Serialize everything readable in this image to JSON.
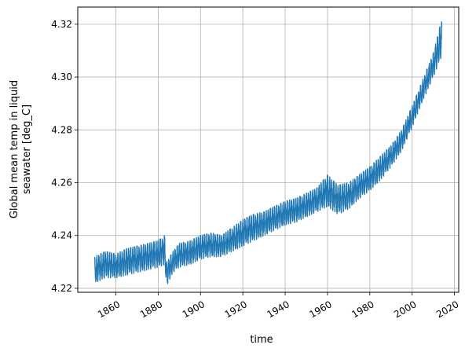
{
  "chart_data": {
    "type": "line",
    "title": "",
    "xlabel": "time",
    "ylabel_lines": [
      "Global mean temp in liquid",
      "seawater [deg_C]"
    ],
    "xlim": [
      1842,
      2022
    ],
    "ylim": [
      4.2185,
      4.3265
    ],
    "grid": true,
    "series_color": "#1f77b4",
    "x_ticks": [
      1860,
      1880,
      1900,
      1920,
      1940,
      1960,
      1980,
      2000,
      2020
    ],
    "x_tick_labels": [
      "1860",
      "1880",
      "1900",
      "1920",
      "1940",
      "1960",
      "1980",
      "2000",
      "2020"
    ],
    "y_ticks": [
      4.22,
      4.24,
      4.26,
      4.28,
      4.3,
      4.32
    ],
    "y_tick_labels": [
      "4.22",
      "4.24",
      "4.26",
      "4.28",
      "4.30",
      "4.32"
    ],
    "series": [
      {
        "x": [
          1850,
          1855,
          1860,
          1865,
          1870,
          1875,
          1880,
          1883,
          1884,
          1887,
          1890,
          1895,
          1900,
          1905,
          1910,
          1915,
          1920,
          1925,
          1930,
          1935,
          1940,
          1945,
          1950,
          1955,
          1960,
          1965,
          1970,
          1975,
          1980,
          1985,
          1990,
          1995,
          2000,
          2005,
          2010,
          2014
        ],
        "low": [
          4.222,
          4.224,
          4.224,
          4.225,
          4.226,
          4.227,
          4.228,
          4.229,
          4.221,
          4.226,
          4.228,
          4.229,
          4.231,
          4.232,
          4.232,
          4.234,
          4.236,
          4.238,
          4.24,
          4.242,
          4.244,
          4.245,
          4.247,
          4.249,
          4.251,
          4.248,
          4.25,
          4.254,
          4.257,
          4.261,
          4.266,
          4.272,
          4.281,
          4.291,
          4.3,
          4.308
        ],
        "high": [
          4.232,
          4.234,
          4.233,
          4.235,
          4.236,
          4.237,
          4.238,
          4.24,
          4.23,
          4.234,
          4.237,
          4.238,
          4.24,
          4.241,
          4.24,
          4.243,
          4.246,
          4.248,
          4.249,
          4.251,
          4.253,
          4.254,
          4.256,
          4.258,
          4.263,
          4.259,
          4.26,
          4.263,
          4.266,
          4.27,
          4.274,
          4.28,
          4.289,
          4.299,
          4.309,
          4.322
        ]
      }
    ]
  }
}
